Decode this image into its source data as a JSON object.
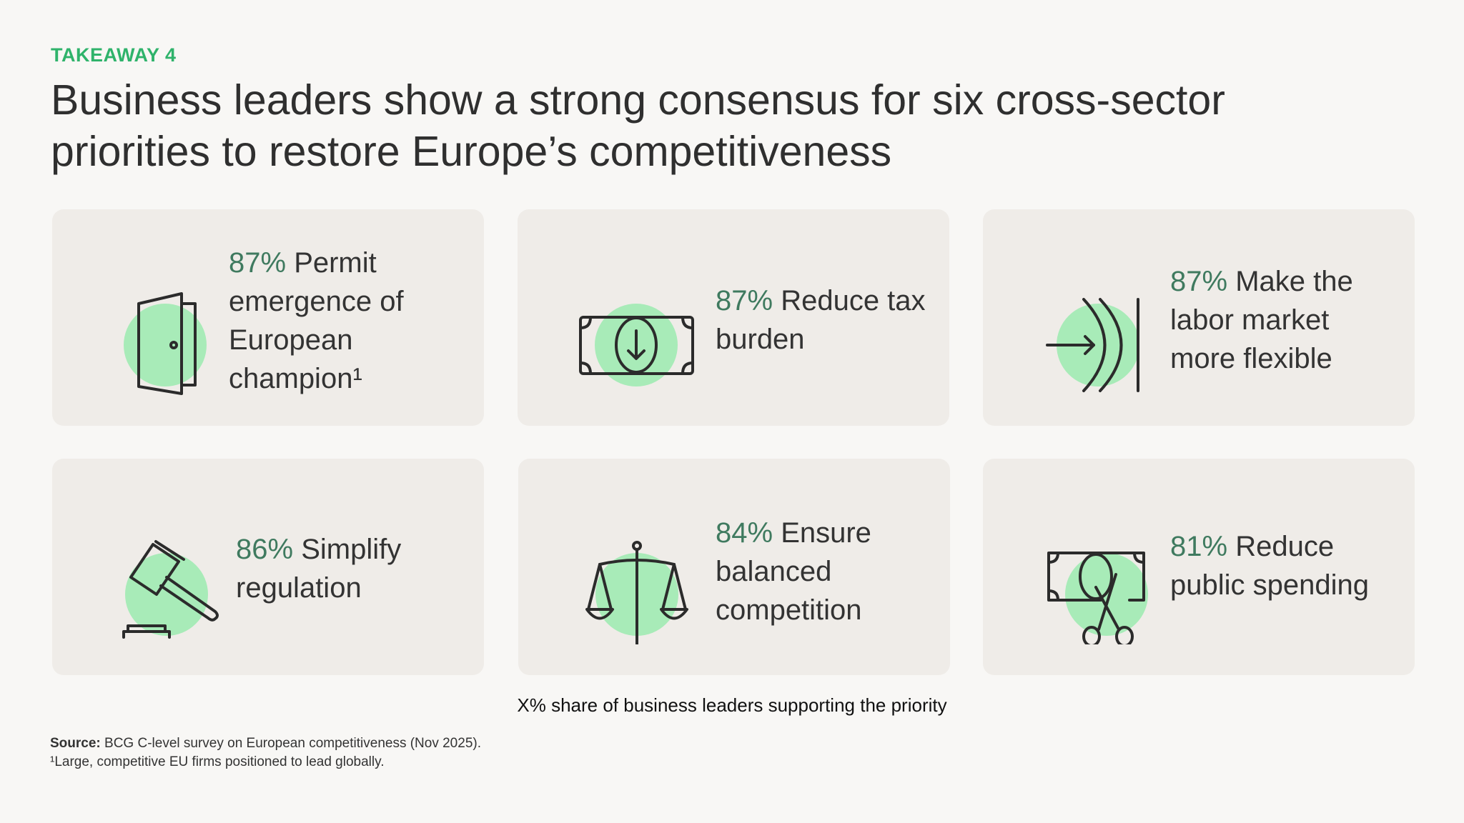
{
  "eyebrow": "TAKEAWAY 4",
  "title_line1": "Business leaders show a strong consensus for six cross-sector",
  "title_line2": "priorities to restore Europe’s competitiveness",
  "accent_color": "#2fb36b",
  "card_color": "#efece8",
  "highlight_circle_color": "#a8ebb8",
  "cards": [
    {
      "icon": "door-icon",
      "percent": "87%",
      "label": "Permit emergence of European champion¹"
    },
    {
      "icon": "banknote-down-arrow-icon",
      "percent": "87%",
      "label": "Reduce tax burden"
    },
    {
      "icon": "arrow-into-barrier-icon",
      "percent": "87%",
      "label": "Make the labor market more flexible"
    },
    {
      "icon": "gavel-icon",
      "percent": "86%",
      "label": "Simplify regulation"
    },
    {
      "icon": "balance-scale-icon",
      "percent": "84%",
      "label": "Ensure balanced competition"
    },
    {
      "icon": "banknote-scissors-icon",
      "percent": "81%",
      "label": "Reduce public spending"
    }
  ],
  "legend": "X% share of business leaders supporting the priority",
  "source_label": "Source:",
  "source_text": "BCG C-level survey on European competitiveness (Nov 2025).",
  "footnote": "¹Large, competitive EU firms positioned to lead globally."
}
